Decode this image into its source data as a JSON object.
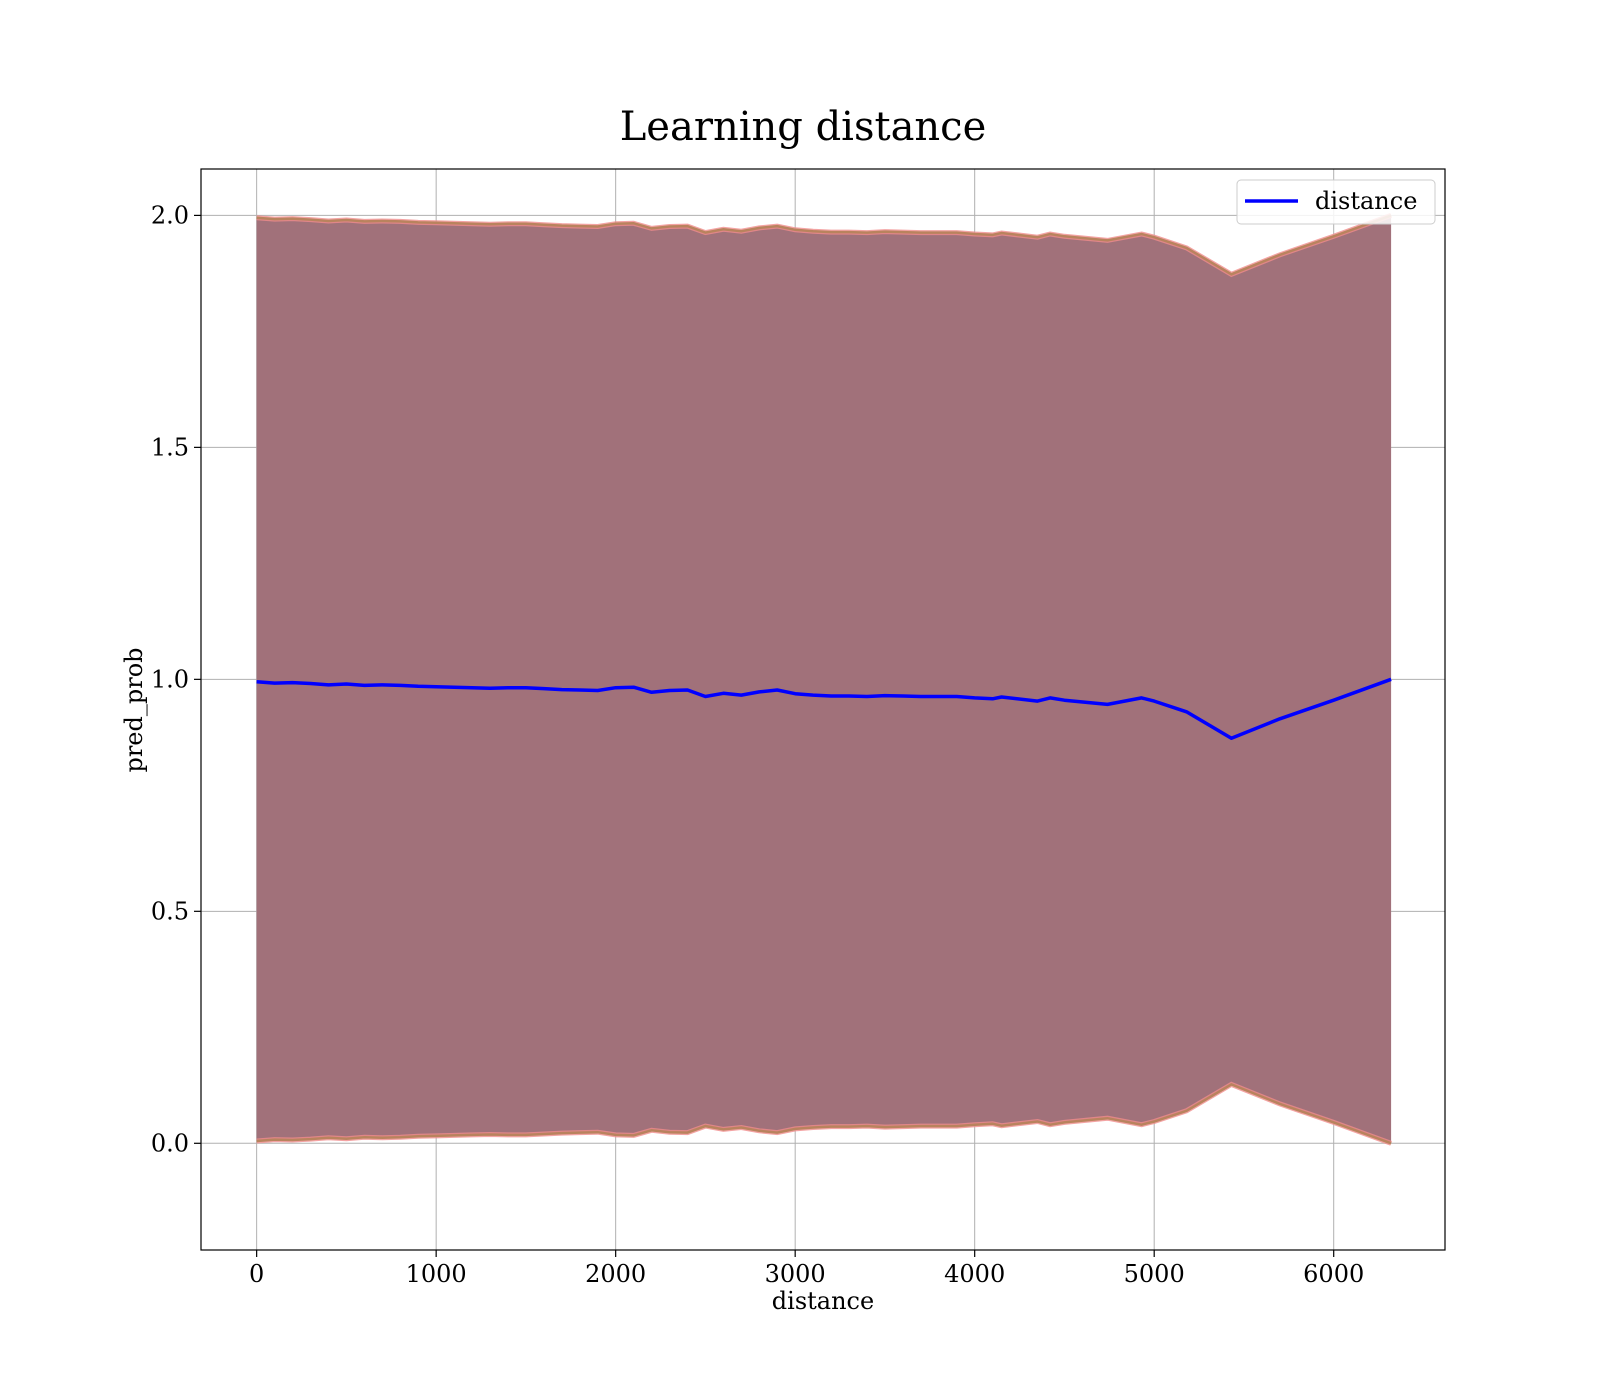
{
  "chart_data": {
    "type": "line",
    "title": "Learning distance",
    "xlabel": "distance",
    "ylabel": "pred_prob",
    "xlim": [
      -310,
      6620
    ],
    "ylim": [
      -0.23,
      2.1
    ],
    "x_ticks": [
      0,
      1000,
      2000,
      3000,
      4000,
      5000,
      6000
    ],
    "x_tick_labels": [
      "0",
      "1000",
      "2000",
      "3000",
      "4000",
      "5000",
      "6000"
    ],
    "y_ticks": [
      0.0,
      0.5,
      1.0,
      1.5,
      2.0
    ],
    "y_tick_labels": [
      "0.0",
      "0.5",
      "1.0",
      "1.5",
      "2.0"
    ],
    "grid": true,
    "legend": {
      "position": "top-right",
      "entries": [
        "distance"
      ]
    },
    "colors": {
      "line": "#0000ff",
      "band_fill": "#a1717a",
      "band_edge_outer": "#f08c8c",
      "band_edge_inner": "#b9835e",
      "grid": "#b0b0b0"
    },
    "series": [
      {
        "name": "distance",
        "x": [
          0,
          100,
          200,
          300,
          400,
          500,
          600,
          700,
          800,
          900,
          1000,
          1100,
          1200,
          1300,
          1400,
          1500,
          1600,
          1700,
          1800,
          1900,
          2000,
          2100,
          2200,
          2300,
          2400,
          2500,
          2600,
          2700,
          2800,
          2900,
          3000,
          3100,
          3200,
          3300,
          3400,
          3500,
          3600,
          3700,
          3800,
          3900,
          4000,
          4100,
          4150,
          4350,
          4420,
          4500,
          4740,
          4930,
          5000,
          5180,
          5430,
          5700,
          6000,
          6320
        ],
        "y": [
          0.995,
          0.992,
          0.993,
          0.991,
          0.988,
          0.99,
          0.987,
          0.988,
          0.987,
          0.985,
          0.984,
          0.983,
          0.982,
          0.981,
          0.982,
          0.982,
          0.98,
          0.978,
          0.977,
          0.976,
          0.982,
          0.983,
          0.972,
          0.976,
          0.977,
          0.963,
          0.97,
          0.966,
          0.973,
          0.977,
          0.969,
          0.966,
          0.964,
          0.964,
          0.963,
          0.965,
          0.964,
          0.963,
          0.963,
          0.963,
          0.96,
          0.958,
          0.962,
          0.953,
          0.96,
          0.955,
          0.946,
          0.96,
          0.953,
          0.93,
          0.873,
          0.915,
          0.955,
          1.0
        ]
      }
    ]
  }
}
